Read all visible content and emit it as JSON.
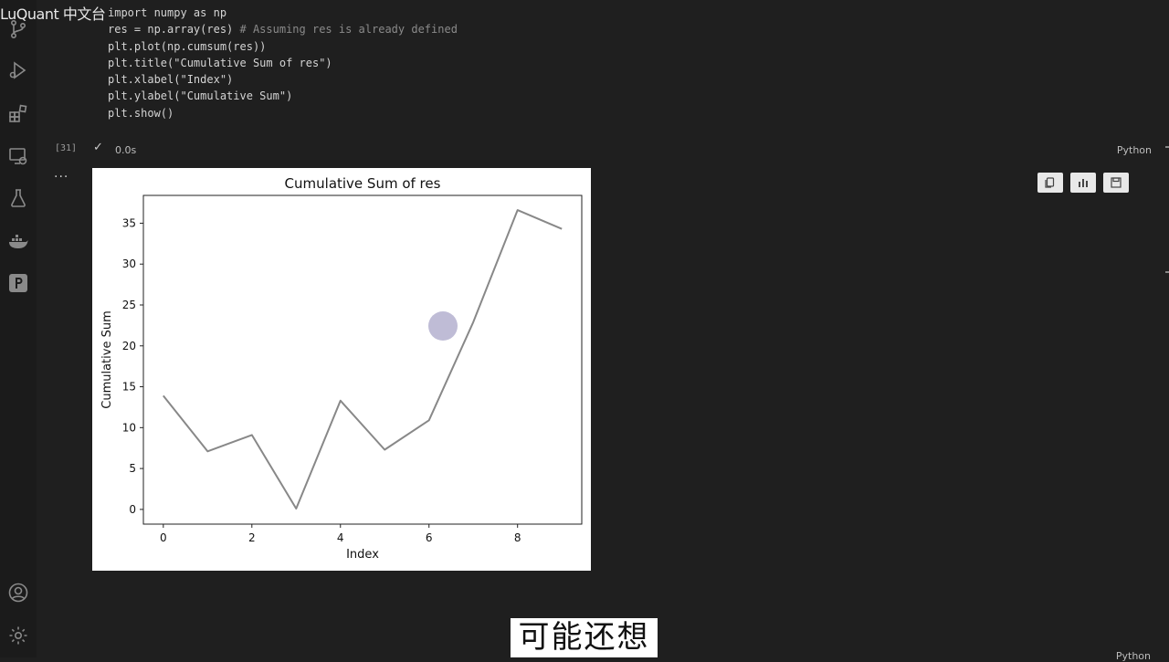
{
  "watermark": "LuQuant 中文台",
  "activity_bar": {
    "icons": [
      "source-control-icon",
      "run-debug-icon",
      "extensions-icon",
      "remote-explorer-icon",
      "testing-icon",
      "docker-icon",
      "p-extension-icon",
      "account-icon",
      "settings-gear-icon"
    ]
  },
  "cell": {
    "code_lines": [
      {
        "code": "import numpy as np",
        "comment": ""
      },
      {
        "code": "res = np.array(res) ",
        "comment": "# Assuming res is already defined"
      },
      {
        "code": "plt.plot(np.cumsum(res))",
        "comment": ""
      },
      {
        "code": "plt.title(\"Cumulative Sum of res\")",
        "comment": ""
      },
      {
        "code": "plt.xlabel(\"Index\")",
        "comment": ""
      },
      {
        "code": "plt.ylabel(\"Cumulative Sum\")",
        "comment": ""
      },
      {
        "code": "plt.show()",
        "comment": ""
      }
    ],
    "execution_count": "[31]",
    "check_mark": "✓",
    "exec_time": "0.0s",
    "language": "Python",
    "output_ellipsis": "..."
  },
  "next_cell": {
    "language": "Python"
  },
  "subtitle": "可能还想",
  "chart_data": {
    "type": "line",
    "title": "Cumulative Sum of res",
    "xlabel": "Index",
    "ylabel": "Cumulative Sum",
    "x": [
      0,
      1,
      2,
      3,
      4,
      5,
      6,
      7,
      8,
      9
    ],
    "y": [
      13.9,
      7.1,
      9.1,
      0.1,
      13.3,
      7.3,
      10.9,
      22.9,
      36.6,
      34.3
    ],
    "xlim": [
      -0.45,
      9.45
    ],
    "ylim": [
      -1.8,
      38.4
    ],
    "xticks": [
      0,
      2,
      4,
      6,
      8
    ],
    "yticks": [
      0,
      5,
      10,
      15,
      20,
      25,
      30,
      35
    ],
    "grid": false,
    "line_color": "#888888"
  }
}
